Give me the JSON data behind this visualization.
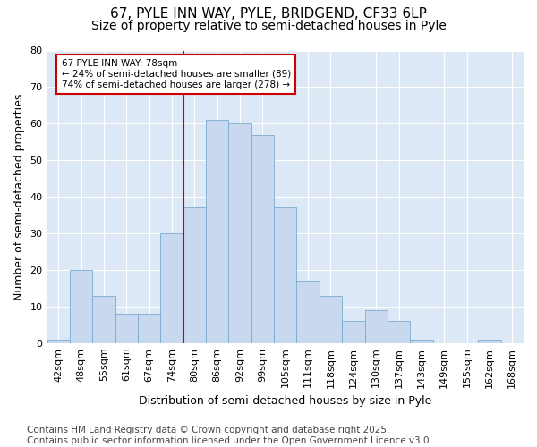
{
  "title1": "67, PYLE INN WAY, PYLE, BRIDGEND, CF33 6LP",
  "title2": "Size of property relative to semi-detached houses in Pyle",
  "xlabel": "Distribution of semi-detached houses by size in Pyle",
  "ylabel": "Number of semi-detached properties",
  "categories": [
    "42sqm",
    "48sqm",
    "55sqm",
    "61sqm",
    "67sqm",
    "74sqm",
    "80sqm",
    "86sqm",
    "92sqm",
    "99sqm",
    "105sqm",
    "111sqm",
    "118sqm",
    "124sqm",
    "130sqm",
    "137sqm",
    "143sqm",
    "149sqm",
    "155sqm",
    "162sqm",
    "168sqm"
  ],
  "values": [
    1,
    20,
    13,
    8,
    8,
    30,
    37,
    61,
    60,
    57,
    37,
    17,
    13,
    6,
    9,
    6,
    1,
    0,
    0,
    1,
    0
  ],
  "bar_color": "#c8d8ee",
  "bar_edge_color": "#7aabcc",
  "vline_x": 6,
  "vline_color": "#cc0000",
  "annotation_box_text": "67 PYLE INN WAY: 78sqm\n← 24% of semi-detached houses are smaller (89)\n74% of semi-detached houses are larger (278) →",
  "annotation_box_color": "#cc0000",
  "ylim": [
    0,
    80
  ],
  "yticks": [
    0,
    10,
    20,
    30,
    40,
    50,
    60,
    70,
    80
  ],
  "footer": "Contains HM Land Registry data © Crown copyright and database right 2025.\nContains public sector information licensed under the Open Government Licence v3.0.",
  "fig_bg_color": "#ffffff",
  "plot_bg_color": "#dce8f5",
  "grid_color": "#ffffff",
  "title_fontsize": 11,
  "subtitle_fontsize": 10,
  "axis_label_fontsize": 9,
  "tick_fontsize": 8,
  "footer_fontsize": 7.5
}
